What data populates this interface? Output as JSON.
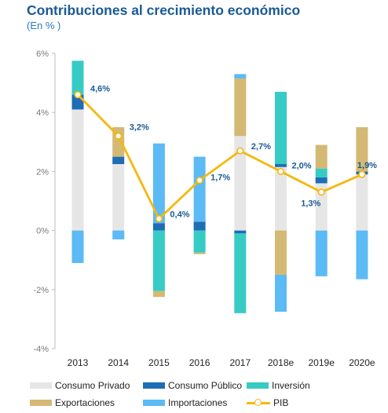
{
  "title": "Contribuciones al crecimiento económico",
  "subtitle": "(En % )",
  "colors": {
    "consumo_privado": "#e6e6e6",
    "consumo_publico": "#1f6db5",
    "inversion": "#36cbc4",
    "exportaciones": "#d4b974",
    "importaciones": "#5cbaf5",
    "pib": "#f5b80f",
    "label": "#1a5a96"
  },
  "chart_data": {
    "type": "bar",
    "stacked": true,
    "categories": [
      "2013",
      "2014",
      "2015",
      "2016",
      "2017",
      "2018e",
      "2019e",
      "2020e"
    ],
    "series": [
      {
        "name": "Consumo Privado",
        "key": "consumo_privado",
        "values": [
          4.1,
          2.25,
          0.0,
          0.0,
          3.2,
          2.15,
          1.6,
          1.9
        ]
      },
      {
        "name": "Consumo Público",
        "key": "consumo_publico",
        "values": [
          0.5,
          0.25,
          0.25,
          0.3,
          -0.1,
          0.1,
          0.2,
          0.1
        ]
      },
      {
        "name": "Inversión",
        "key": "inversion",
        "values": [
          1.15,
          0.0,
          -2.05,
          -0.75,
          -2.7,
          2.45,
          0.3,
          0.0
        ]
      },
      {
        "name": "Exportaciones",
        "key": "exportaciones",
        "values": [
          0.0,
          1.0,
          -0.2,
          -0.05,
          1.95,
          -1.5,
          0.8,
          1.5
        ]
      },
      {
        "name": "Importaciones",
        "key": "importaciones",
        "values": [
          -1.1,
          -0.3,
          2.7,
          2.2,
          0.15,
          -1.25,
          -1.55,
          -1.65
        ]
      }
    ],
    "line": {
      "name": "PIB",
      "key": "pib",
      "values": [
        4.6,
        3.2,
        0.4,
        1.7,
        2.7,
        2.0,
        1.3,
        1.9
      ],
      "labels": [
        "4,6%",
        "3,2%",
        "0,4%",
        "1,7%",
        "2,7%",
        "2,0%",
        "1,3%",
        "1,9%"
      ]
    },
    "yticks": [
      6,
      4,
      2,
      0,
      -2,
      -4
    ],
    "ytick_labels": [
      "6%",
      "4%",
      "2%",
      "0%",
      "-2%",
      "-4%"
    ],
    "ylim": [
      -4,
      6
    ],
    "grid": false
  },
  "legend": [
    {
      "label": "Consumo Privado",
      "key": "consumo_privado",
      "kind": "bar"
    },
    {
      "label": "Consumo Público",
      "key": "consumo_publico",
      "kind": "bar"
    },
    {
      "label": "Inversión",
      "key": "inversion",
      "kind": "bar"
    },
    {
      "label": "Exportaciones",
      "key": "exportaciones",
      "kind": "bar"
    },
    {
      "label": "Importaciones",
      "key": "importaciones",
      "kind": "bar"
    },
    {
      "label": "PIB",
      "key": "pib",
      "kind": "line"
    }
  ]
}
